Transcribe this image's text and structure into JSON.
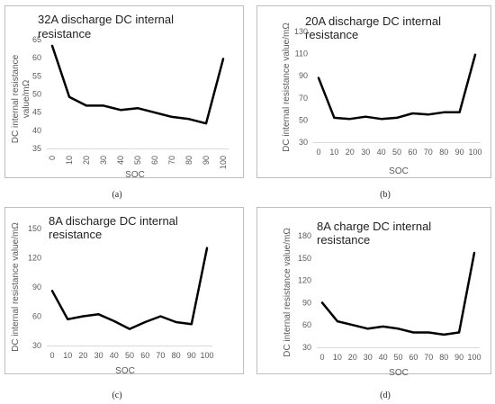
{
  "chart_data": [
    {
      "type": "line",
      "panel_label": "(a)",
      "title": [
        "32A discharge DC internal",
        "resistance"
      ],
      "xlabel": "SOC",
      "ylabel": [
        "DC internal resistance",
        "value/mΩ"
      ],
      "categories": [
        "0",
        "10",
        "20",
        "30",
        "40",
        "50",
        "60",
        "70",
        "80",
        "90",
        "100"
      ],
      "x_tick_rotation": "vertical",
      "ylim": [
        35,
        65
      ],
      "yticks": [
        35,
        40,
        45,
        50,
        55,
        60,
        65
      ],
      "grid": false,
      "series": [
        {
          "values": [
            63.3,
            49.2,
            46.8,
            46.8,
            45.6,
            46.1,
            44.9,
            43.7,
            43.1,
            41.9,
            59.7
          ]
        }
      ]
    },
    {
      "type": "line",
      "panel_label": "(b)",
      "title": [
        "20A discharge DC internal",
        "resistance"
      ],
      "xlabel": "SOC",
      "ylabel": [
        "DC internal resistance value/mΩ"
      ],
      "categories": [
        "0",
        "10",
        "20",
        "30",
        "40",
        "50",
        "60",
        "70",
        "80",
        "90",
        "100"
      ],
      "x_tick_rotation": "horizontal",
      "ylim": [
        30,
        130
      ],
      "yticks": [
        30,
        50,
        70,
        90,
        110,
        130
      ],
      "grid": false,
      "series": [
        {
          "values": [
            88,
            52,
            51,
            53,
            51,
            52,
            56,
            55,
            57,
            57,
            109
          ]
        }
      ]
    },
    {
      "type": "line",
      "panel_label": "(c)",
      "title": [
        "8A discharge DC internal",
        "resistance"
      ],
      "xlabel": "SOC",
      "ylabel": [
        "DC internal resistance value/mΩ"
      ],
      "categories": [
        "0",
        "10",
        "20",
        "30",
        "40",
        "50",
        "60",
        "70",
        "80",
        "90",
        "100"
      ],
      "x_tick_rotation": "horizontal",
      "ylim": [
        30,
        150
      ],
      "yticks": [
        30,
        60,
        90,
        120,
        150
      ],
      "grid": false,
      "series": [
        {
          "values": [
            86,
            57,
            60,
            62,
            55,
            47,
            54,
            60,
            54,
            52,
            130
          ]
        }
      ]
    },
    {
      "type": "line",
      "panel_label": "(d)",
      "title": [
        "8A charge DC internal",
        "resistance"
      ],
      "xlabel": "SOC",
      "ylabel": [
        "DC internal resistance value/mΩ"
      ],
      "categories": [
        "0",
        "10",
        "20",
        "30",
        "40",
        "50",
        "60",
        "70",
        "80",
        "90",
        "100"
      ],
      "x_tick_rotation": "horizontal",
      "ylim": [
        30,
        180
      ],
      "yticks": [
        30,
        60,
        90,
        120,
        150,
        180
      ],
      "grid": false,
      "series": [
        {
          "values": [
            90,
            65,
            60,
            55,
            58,
            55,
            50,
            50,
            47,
            50,
            157
          ]
        }
      ]
    }
  ]
}
